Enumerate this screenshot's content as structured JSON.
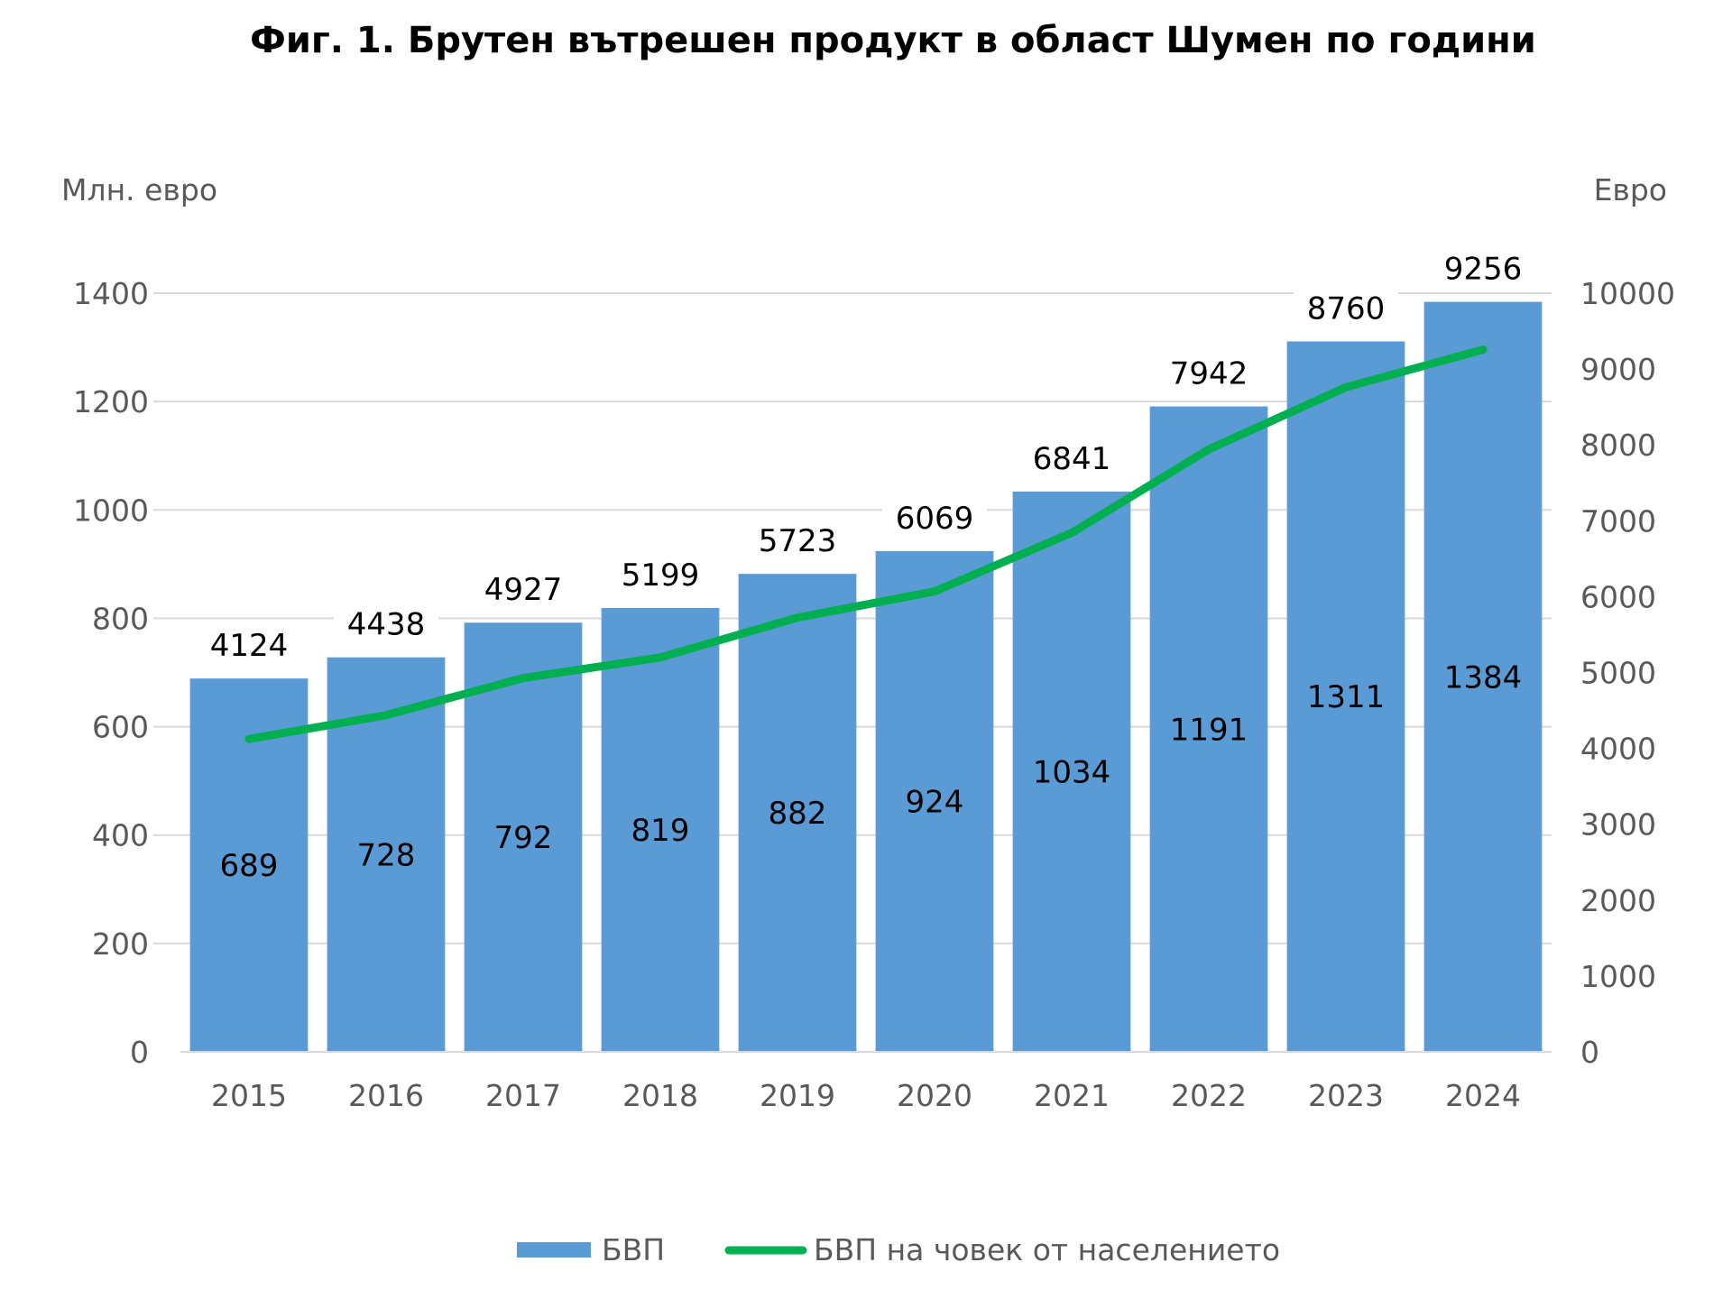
{
  "chart_data": {
    "type": "bar",
    "title": "Фиг. 1. Брутен вътрешен продукт в област Шумен по години",
    "ylabel_left": "Млн. евро",
    "ylabel_right": "Евро",
    "categories": [
      "2015",
      "2016",
      "2017",
      "2018",
      "2019",
      "2020",
      "2021",
      "2022",
      "2023",
      "2024"
    ],
    "ylim_left": [
      0,
      1400
    ],
    "ylim_right": [
      0,
      10000
    ],
    "yticks_left": [
      "0",
      "200",
      "400",
      "600",
      "800",
      "1000",
      "1200",
      "1400"
    ],
    "yticks_right": [
      "0",
      "1000",
      "2000",
      "3000",
      "4000",
      "5000",
      "6000",
      "7000",
      "8000",
      "9000",
      "10000"
    ],
    "grid": true,
    "legend_position": "bottom",
    "series": [
      {
        "name": "БВП",
        "type": "bar",
        "axis": "left",
        "color": "#5b9bd5",
        "values": [
          689,
          728,
          792,
          819,
          882,
          924,
          1034,
          1191,
          1311,
          1384
        ]
      },
      {
        "name": "БВП на човек от населението",
        "type": "line",
        "axis": "right",
        "color": "#00b050",
        "values": [
          4124,
          4438,
          4927,
          5199,
          5723,
          6069,
          6841,
          7942,
          8760,
          9256
        ]
      }
    ]
  }
}
